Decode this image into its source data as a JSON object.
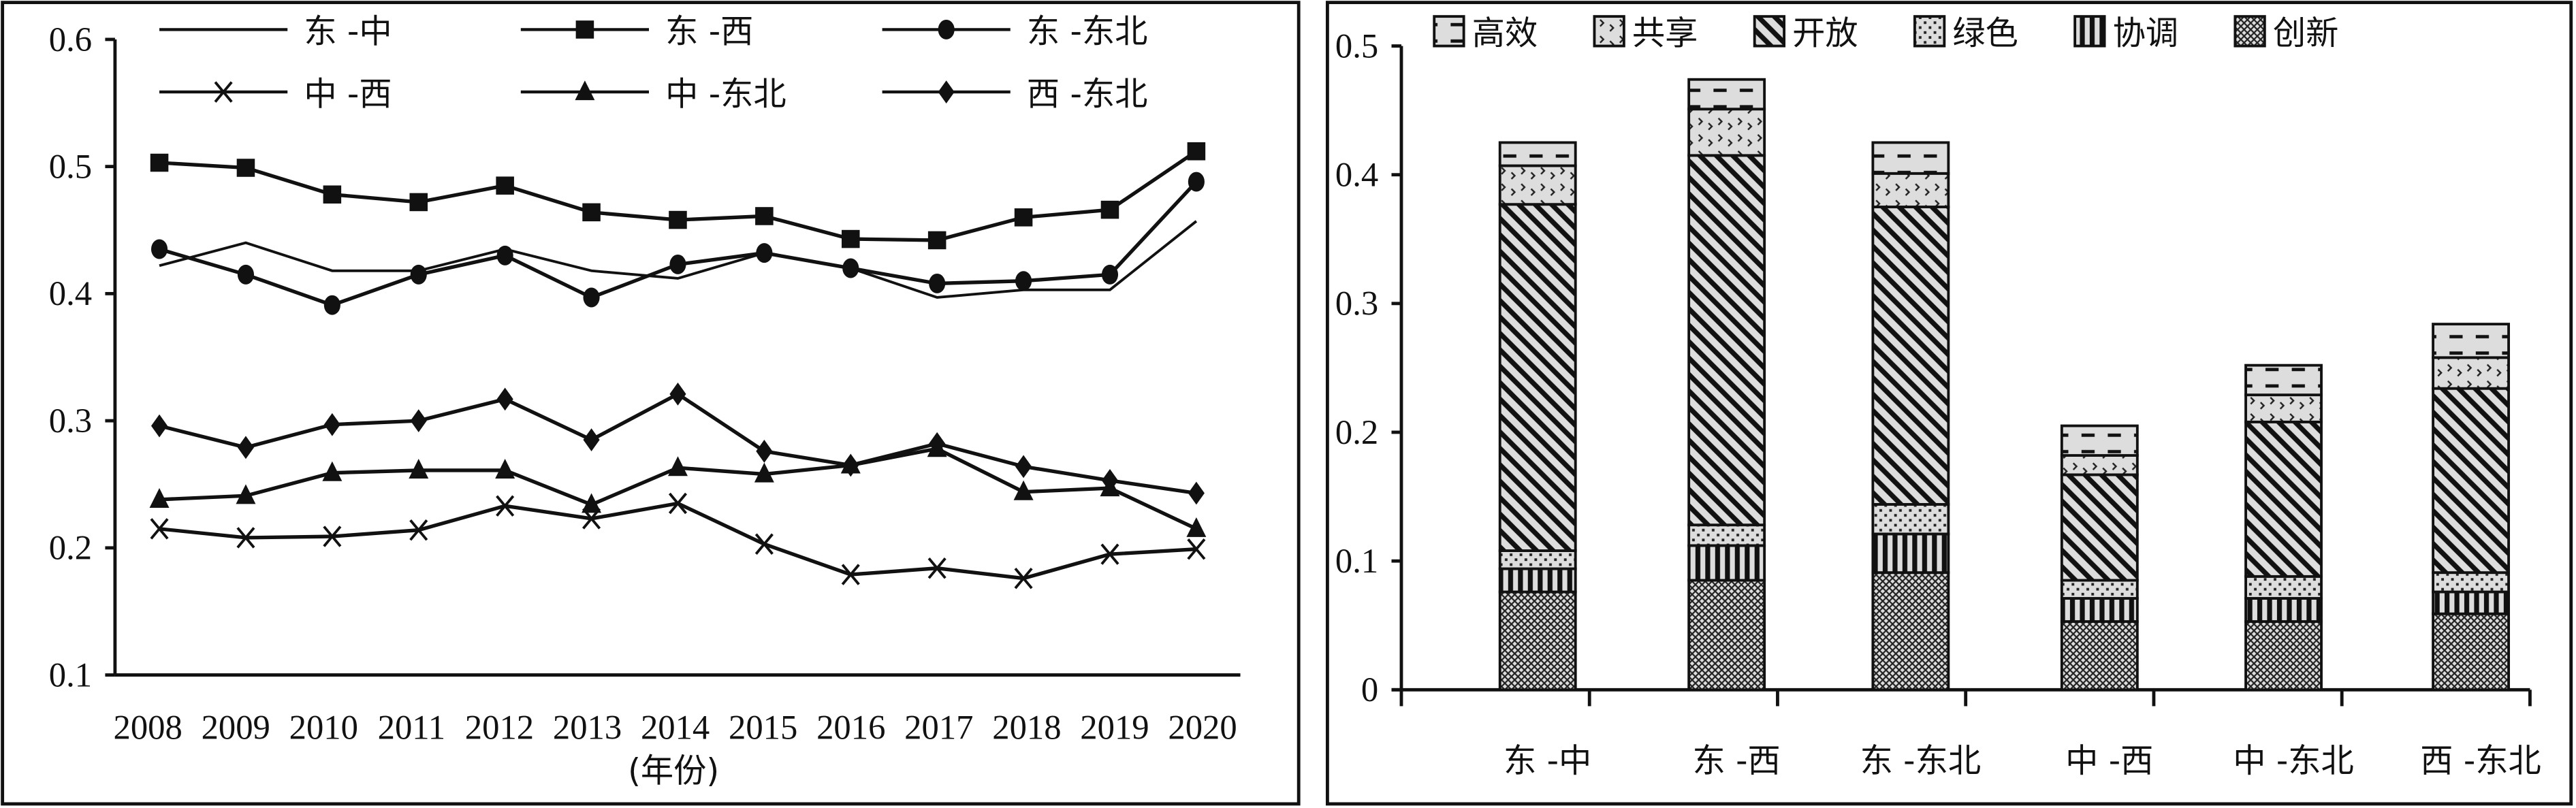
{
  "chart_data": [
    {
      "type": "line",
      "title": "",
      "xlabel": "(年份)",
      "ylabel": "",
      "ylim": [
        0.1,
        0.6
      ],
      "yticks": [
        "0.1",
        "0.2",
        "0.3",
        "0.4",
        "0.5",
        "0.6"
      ],
      "x": [
        "2008",
        "2009",
        "2010",
        "2011",
        "2012",
        "2013",
        "2014",
        "2015",
        "2016",
        "2017",
        "2018",
        "2019",
        "2020"
      ],
      "legend_position": "top",
      "series": [
        {
          "name": "东 -中",
          "marker": "none",
          "values": [
            0.422,
            0.44,
            0.418,
            0.418,
            0.435,
            0.418,
            0.412,
            0.432,
            0.42,
            0.397,
            0.403,
            0.403,
            0.457
          ]
        },
        {
          "name": "东 -西",
          "marker": "square",
          "values": [
            0.503,
            0.499,
            0.478,
            0.472,
            0.485,
            0.464,
            0.458,
            0.461,
            0.443,
            0.442,
            0.46,
            0.466,
            0.512
          ]
        },
        {
          "name": "东 -东北",
          "marker": "circle",
          "values": [
            0.435,
            0.415,
            0.391,
            0.415,
            0.43,
            0.397,
            0.423,
            0.432,
            0.42,
            0.408,
            0.41,
            0.415,
            0.488
          ]
        },
        {
          "name": "中 -西",
          "marker": "x",
          "values": [
            0.215,
            0.208,
            0.209,
            0.214,
            0.233,
            0.223,
            0.235,
            0.203,
            0.179,
            0.184,
            0.176,
            0.195,
            0.199
          ]
        },
        {
          "name": "中 -东北",
          "marker": "triangle",
          "values": [
            0.238,
            0.241,
            0.259,
            0.261,
            0.261,
            0.234,
            0.263,
            0.258,
            0.265,
            0.278,
            0.244,
            0.247,
            0.215
          ]
        },
        {
          "name": "西 -东北",
          "marker": "diamond",
          "values": [
            0.296,
            0.279,
            0.297,
            0.3,
            0.317,
            0.285,
            0.321,
            0.276,
            0.265,
            0.282,
            0.264,
            0.253,
            0.243
          ]
        }
      ]
    },
    {
      "type": "bar",
      "stacked": true,
      "ylim": [
        0,
        0.5
      ],
      "yticks": [
        "0",
        "0.1",
        "0.2",
        "0.3",
        "0.4",
        "0.5"
      ],
      "categories": [
        "东 -中",
        "东 -西",
        "东 -东北",
        "中 -西",
        "中 -东北",
        "西 -东北"
      ],
      "legend_position": "top",
      "legend_order": [
        "高效",
        "共享",
        "开放",
        "绿色",
        "协调",
        "创新"
      ],
      "series": [
        {
          "name": "创新",
          "pattern": "crosshatch",
          "values": [
            0.076,
            0.085,
            0.091,
            0.053,
            0.053,
            0.059
          ]
        },
        {
          "name": "协调",
          "pattern": "vertical",
          "values": [
            0.018,
            0.027,
            0.03,
            0.018,
            0.018,
            0.017
          ]
        },
        {
          "name": "绿色",
          "pattern": "dots",
          "values": [
            0.014,
            0.016,
            0.023,
            0.014,
            0.017,
            0.015
          ]
        },
        {
          "name": "开放",
          "pattern": "diagonal",
          "values": [
            0.269,
            0.287,
            0.231,
            0.082,
            0.12,
            0.143
          ]
        },
        {
          "name": "共享",
          "pattern": "chevron",
          "values": [
            0.03,
            0.036,
            0.026,
            0.015,
            0.021,
            0.024
          ]
        },
        {
          "name": "高效",
          "pattern": "dash",
          "values": [
            0.018,
            0.023,
            0.024,
            0.023,
            0.023,
            0.026
          ]
        }
      ]
    }
  ]
}
